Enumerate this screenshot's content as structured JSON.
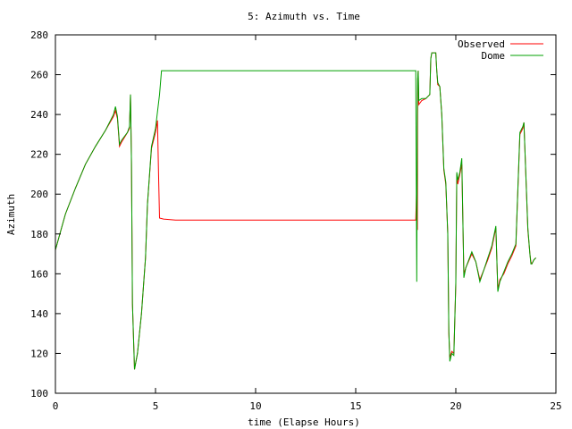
{
  "chart_data": {
    "type": "line",
    "title": "5: Azimuth vs. Time",
    "xlabel": "time (Elapse Hours)",
    "ylabel": "Azimuth",
    "xlim": [
      0,
      25
    ],
    "ylim": [
      100,
      280
    ],
    "xticks": [
      0,
      5,
      10,
      15,
      20,
      25
    ],
    "yticks": [
      100,
      120,
      140,
      160,
      180,
      200,
      220,
      240,
      260,
      280
    ],
    "grid": false,
    "legend_position": "top-right",
    "series": [
      {
        "name": "Observed",
        "color": "#ff0000",
        "x": [
          0,
          0.5,
          1,
          1.5,
          2,
          2.5,
          2.9,
          3.0,
          3.1,
          3.2,
          3.3,
          3.6,
          3.7,
          3.75,
          3.8,
          3.85,
          3.95,
          4.1,
          4.3,
          4.5,
          4.6,
          4.8,
          5.0,
          5.1,
          5.15,
          5.2,
          5.4,
          6.0,
          10,
          15,
          17.8,
          18.0,
          18.05,
          18.08,
          18.1,
          18.12,
          18.15,
          18.3,
          18.5,
          18.7,
          18.75,
          18.8,
          19.0,
          19.05,
          19.1,
          19.2,
          19.3,
          19.4,
          19.5,
          19.6,
          19.65,
          19.7,
          19.8,
          19.9,
          20.0,
          20.05,
          20.1,
          20.2,
          20.3,
          20.4,
          20.5,
          20.8,
          21.0,
          21.2,
          21.4,
          21.6,
          21.8,
          22.0,
          22.1,
          22.2,
          22.4,
          22.6,
          22.8,
          23.0,
          23.2,
          23.35,
          23.4,
          23.6,
          23.7,
          23.75,
          23.8,
          23.9,
          24.0
        ],
        "y": [
          172,
          190,
          203,
          215,
          224,
          232,
          239,
          242,
          238,
          224,
          226,
          231,
          233,
          250,
          216,
          145,
          112,
          120,
          140,
          168,
          195,
          223,
          231,
          237,
          210,
          188,
          187.5,
          187,
          187,
          187,
          187,
          187,
          205,
          182,
          258,
          262,
          245,
          247,
          248,
          250,
          268,
          271,
          271,
          262,
          255,
          254,
          240,
          212,
          205,
          180,
          130,
          118,
          121,
          120,
          155,
          210,
          205,
          210,
          215,
          160,
          163,
          170,
          166,
          157,
          162,
          167,
          173,
          183,
          152,
          157,
          160,
          165,
          169,
          174,
          230,
          233,
          236,
          182,
          170,
          166,
          165,
          167,
          168
        ]
      },
      {
        "name": "Dome",
        "color": "#00a000",
        "x": [
          0,
          0.5,
          1,
          1.5,
          2,
          2.5,
          2.9,
          3.0,
          3.1,
          3.2,
          3.3,
          3.6,
          3.7,
          3.75,
          3.8,
          3.85,
          3.95,
          4.1,
          4.3,
          4.5,
          4.6,
          4.8,
          5.0,
          5.2,
          5.3,
          6.0,
          10,
          15,
          17.8,
          17.9,
          18.0,
          18.05,
          18.08,
          18.1,
          18.12,
          18.15,
          18.3,
          18.5,
          18.7,
          18.75,
          18.8,
          19.0,
          19.05,
          19.1,
          19.2,
          19.3,
          19.4,
          19.5,
          19.6,
          19.65,
          19.7,
          19.8,
          19.9,
          20.0,
          20.05,
          20.1,
          20.2,
          20.3,
          20.4,
          20.5,
          20.8,
          21.0,
          21.2,
          21.4,
          21.6,
          21.8,
          22.0,
          22.1,
          22.2,
          22.4,
          22.6,
          22.8,
          23.0,
          23.2,
          23.35,
          23.4,
          23.6,
          23.7,
          23.75,
          23.8,
          23.9,
          24.0
        ],
        "y": [
          172,
          190,
          203,
          215,
          224,
          232,
          240,
          244,
          239,
          225,
          227,
          231,
          234,
          250,
          216,
          145,
          112,
          120,
          140,
          168,
          195,
          224,
          233,
          250,
          262,
          262,
          262,
          262,
          262,
          262,
          262,
          156,
          240,
          258,
          262,
          247,
          248,
          248,
          250,
          268,
          271,
          271,
          262,
          256,
          254,
          240,
          213,
          206,
          180,
          131,
          116,
          120,
          119,
          156,
          211,
          207,
          211,
          218,
          158,
          163,
          171,
          166,
          156,
          162,
          168,
          174,
          184,
          151,
          156,
          161,
          166,
          170,
          175,
          231,
          234,
          236,
          183,
          170,
          165,
          165,
          167,
          168
        ]
      }
    ]
  }
}
